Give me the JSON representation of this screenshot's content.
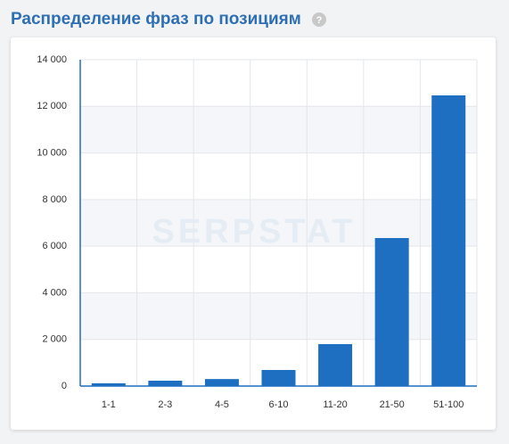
{
  "chart_data": {
    "type": "bar",
    "title": "Распределение фраз по позициям",
    "help_icon": "?",
    "watermark": "SERPSTAT",
    "categories": [
      "1-1",
      "2-3",
      "4-5",
      "6-10",
      "11-20",
      "21-50",
      "51-100"
    ],
    "values": [
      120,
      230,
      300,
      690,
      1800,
      6350,
      12470
    ],
    "color": "#1e6fc1",
    "ylim": [
      0,
      14000
    ],
    "yticks": [
      0,
      {
        "value": 2000,
        "label": "2 000"
      },
      {
        "value": 4000,
        "label": "4 000"
      },
      {
        "value": 6000,
        "label": "6 000"
      },
      {
        "value": 8000,
        "label": "8 000"
      },
      {
        "value": 10000,
        "label": "10 000"
      },
      {
        "value": 12000,
        "label": "12 000"
      },
      {
        "value": 14000,
        "label": "14 000"
      }
    ],
    "grid": true
  }
}
